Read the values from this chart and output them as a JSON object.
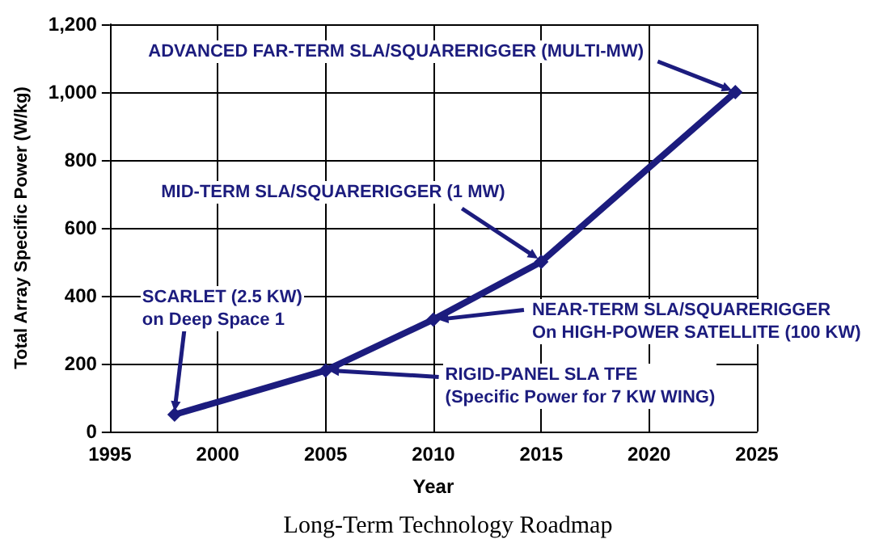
{
  "chart_data": {
    "type": "line",
    "title": "Long-Term Technology Roadmap",
    "xlabel": "Year",
    "ylabel": "Total Array Specific Power (W/kg)",
    "x": [
      1998,
      2005,
      2010,
      2015,
      2024
    ],
    "series": [
      {
        "color": "#1c1c7e",
        "values": [
          50,
          180,
          330,
          500,
          1000
        ]
      }
    ],
    "xlim": [
      1995,
      2025
    ],
    "xticks": [
      1995,
      2000,
      2005,
      2010,
      2015,
      2020,
      2025
    ],
    "ylim": [
      0,
      1200
    ],
    "yticks": [
      0,
      200,
      400,
      600,
      800,
      {
        "value": 1000,
        "label": "1,000"
      },
      {
        "value": 1200,
        "label": "1,200"
      }
    ],
    "grid": true,
    "marker": "diamond",
    "line_style": "solid",
    "annotations": [
      {
        "text": "SCARLET (2.5 KW)\non Deep Space 1",
        "x": 1998,
        "y": 50
      },
      {
        "text": "RIGID-PANEL SLA TFE\n(Specific Power for 7 KW WING)",
        "x": 2005,
        "y": 180
      },
      {
        "text": "NEAR-TERM SLA/SQUARERIGGER\nOn HIGH-POWER SATELLITE (100 KW)",
        "x": 2010,
        "y": 330
      },
      {
        "text": "MID-TERM SLA/SQUARERIGGER (1 MW)",
        "x": 2015,
        "y": 500
      },
      {
        "text": "ADVANCED FAR-TERM SLA/SQUARERIGGER (MULTI-MW)",
        "x": 2024,
        "y": 1000
      }
    ]
  }
}
